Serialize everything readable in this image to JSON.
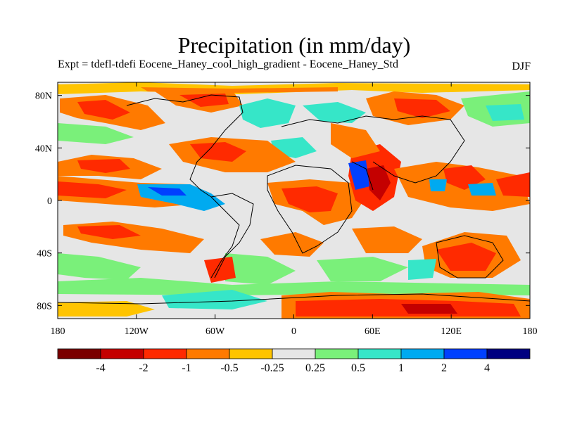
{
  "title": "Precipitation (in mm/day)",
  "subtitle": "Expt = tdefl-tdefi  Eocene_Haney_cool_high_gradient - Eocene_Haney_Std",
  "season": "DJF",
  "map": {
    "projection": "cylindrical-equidistant",
    "lon_range": [
      -180,
      180
    ],
    "lat_range": [
      -90,
      90
    ],
    "xticks": [
      {
        "value": -180,
        "label": "180"
      },
      {
        "value": -120,
        "label": "120W"
      },
      {
        "value": -60,
        "label": "60W"
      },
      {
        "value": 0,
        "label": "0"
      },
      {
        "value": 60,
        "label": "60E"
      },
      {
        "value": 120,
        "label": "120E"
      },
      {
        "value": 180,
        "label": "180"
      }
    ],
    "yticks": [
      {
        "value": 80,
        "label": "80N"
      },
      {
        "value": 40,
        "label": "40N"
      },
      {
        "value": 0,
        "label": "0"
      },
      {
        "value": -40,
        "label": "40S"
      },
      {
        "value": -80,
        "label": "80S"
      }
    ]
  },
  "colorbar": {
    "colors": [
      "#7a0000",
      "#c40000",
      "#ff2a00",
      "#ff7a00",
      "#ffc400",
      "#e6e6e6",
      "#7af07a",
      "#36e6c8",
      "#00aaf0",
      "#0040ff",
      "#000080"
    ],
    "labels": [
      {
        "boundary": 1,
        "text": "-4"
      },
      {
        "boundary": 2,
        "text": "-2"
      },
      {
        "boundary": 3,
        "text": "-1"
      },
      {
        "boundary": 4,
        "text": "-0.5"
      },
      {
        "boundary": 5,
        "text": "-0.25"
      },
      {
        "boundary": 6,
        "text": "0.25"
      },
      {
        "boundary": 7,
        "text": "0.5"
      },
      {
        "boundary": 8,
        "text": "1"
      },
      {
        "boundary": 9,
        "text": "2"
      },
      {
        "boundary": 10,
        "text": "4"
      }
    ]
  }
}
